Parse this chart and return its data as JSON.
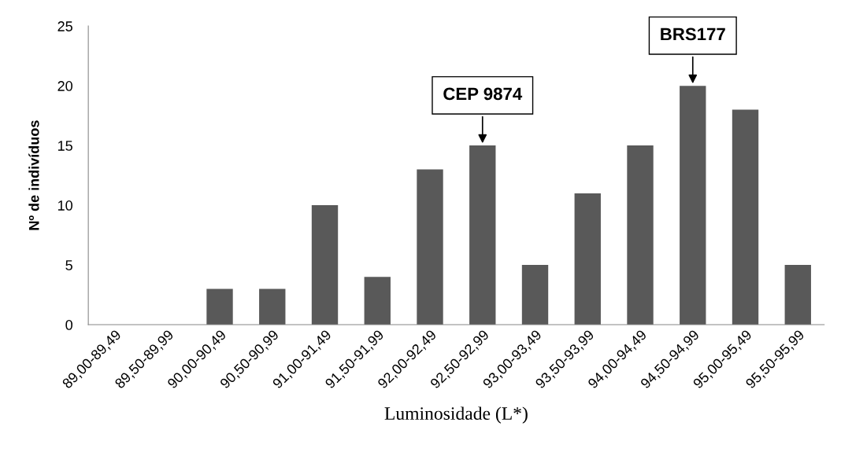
{
  "chart_data": {
    "type": "bar",
    "categories": [
      "89,00-89,49",
      "89,50-89,99",
      "90,00-90,49",
      "90,50-90,99",
      "91,00-91,49",
      "91,50-91,99",
      "92,00-92,49",
      "92,50-92,99",
      "93,00-93,49",
      "93,50-93,99",
      "94,00-94,49",
      "94,50-94,99",
      "95,00-95,49",
      "95,50-95,99"
    ],
    "values": [
      0,
      0,
      3,
      3,
      10,
      4,
      13,
      15,
      5,
      11,
      15,
      20,
      18,
      5
    ],
    "color": "#595959",
    "xlabel": "Luminosidade (L*)",
    "ylabel": "Nº de indivíduos",
    "ylim": [
      0,
      25
    ],
    "yticks": [
      0,
      5,
      10,
      15,
      20,
      25
    ],
    "grid": false,
    "legend": false,
    "annotations": [
      {
        "text": "CEP 9874",
        "x": "92,50-92,99",
        "y": 15
      },
      {
        "text": "BRS177",
        "x": "94,50-94,99",
        "y": 20
      }
    ]
  }
}
